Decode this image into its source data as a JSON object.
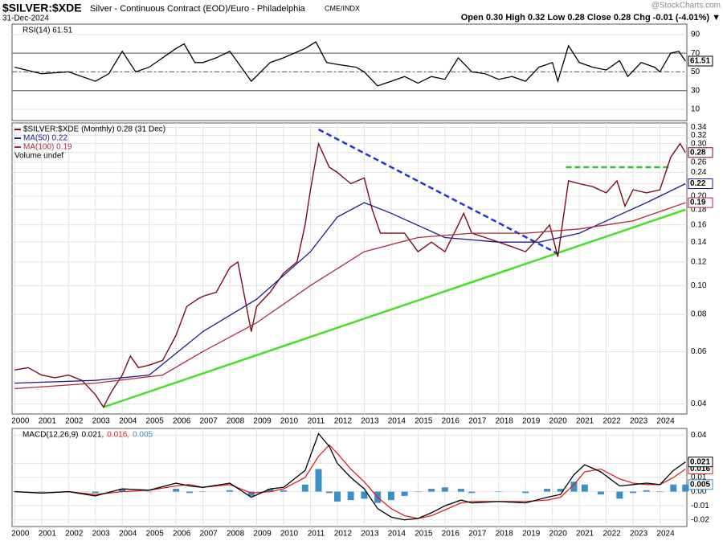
{
  "header": {
    "title": "$SILVER:$XDE",
    "subtitle": "Silver - Continuous Contract (EOD)/Euro - Philadelphia",
    "exchange": "CME/INDX",
    "date": "31-Dec-2024",
    "ohlc": "Open 0.30  High 0.32  Low 0.28  Close 0.28  Chg -0.01 (-4.01%) ▼",
    "credit": "@StockCharts.com"
  },
  "chart_data": [
    {
      "type": "line",
      "title": "RSI(14) 61.51",
      "xlim": [
        1999.9,
        2025
      ],
      "ylim": [
        -2,
        101
      ],
      "yticks": [
        10,
        30,
        50,
        70,
        90
      ],
      "levels": [
        70,
        50,
        30
      ],
      "grid": true,
      "series": [
        {
          "color": "#000000",
          "tag": "61.51",
          "x": [
            2000,
            2001,
            2002,
            2003,
            2003.5,
            2004,
            2004.5,
            2005,
            2006,
            2006.3,
            2006.7,
            2007,
            2007.5,
            2008,
            2008.8,
            2009.5,
            2010,
            2010.8,
            2011.2,
            2011.6,
            2012,
            2012.7,
            2013,
            2013.5,
            2014,
            2014.5,
            2015,
            2015.5,
            2016,
            2016.5,
            2017,
            2017.5,
            2018,
            2018.5,
            2019,
            2019.5,
            2020,
            2020.2,
            2020.6,
            2021,
            2021.5,
            2022,
            2022.5,
            2022.8,
            2023.3,
            2023.8,
            2024,
            2024.4,
            2024.7,
            2024.95
          ],
          "values": [
            55,
            48,
            50,
            40,
            48,
            72,
            50,
            55,
            75,
            80,
            60,
            60,
            65,
            72,
            40,
            60,
            65,
            75,
            82,
            60,
            58,
            55,
            50,
            35,
            40,
            45,
            38,
            45,
            42,
            65,
            50,
            48,
            42,
            45,
            40,
            55,
            60,
            40,
            78,
            60,
            55,
            52,
            62,
            45,
            60,
            55,
            50,
            70,
            72,
            61.51
          ]
        }
      ]
    },
    {
      "type": "line",
      "log_scale": true,
      "xlim": [
        1999.9,
        2025
      ],
      "ylim": [
        0.037,
        0.352
      ],
      "yticks": [
        0.04,
        0.06,
        0.08,
        {
          "value": 0.1,
          "label": "0.10"
        },
        0.12,
        0.14,
        0.16,
        0.18,
        {
          "value": 0.2,
          "label": "0.20"
        },
        0.22,
        0.24,
        0.26,
        0.28,
        {
          "value": 0.3,
          "label": "0.30"
        },
        0.32,
        0.34
      ],
      "xticks": [
        2000,
        2001,
        2002,
        2003,
        2004,
        2005,
        2006,
        2007,
        2008,
        2009,
        2010,
        2011,
        2012,
        2013,
        2014,
        2015,
        2016,
        2017,
        2018,
        2019,
        2020,
        2021,
        2022,
        2023,
        2024
      ],
      "grid": true,
      "series": [
        {
          "legend": "$SILVER:$XDE (Monthly) 0.28 (31 Dec)",
          "color": "#7a0a1e",
          "tag": "0.28",
          "x": [
            2000,
            2000.5,
            2001,
            2001.5,
            2002,
            2002.5,
            2003,
            2003.3,
            2003.6,
            2004,
            2004.3,
            2004.6,
            2005,
            2005.5,
            2006,
            2006.4,
            2006.8,
            2007,
            2007.5,
            2008,
            2008.3,
            2008.8,
            2009,
            2009.5,
            2010,
            2010.5,
            2010.8,
            2011,
            2011.3,
            2011.7,
            2012,
            2012.5,
            2013,
            2013.3,
            2013.6,
            2014,
            2014.5,
            2015,
            2015.5,
            2016,
            2016.5,
            2016.7,
            2017,
            2017.5,
            2018,
            2018.5,
            2019,
            2019.5,
            2019.9,
            2020.2,
            2020.6,
            2021,
            2021.5,
            2022,
            2022.4,
            2022.7,
            2023,
            2023.5,
            2024,
            2024.4,
            2024.75,
            2024.95
          ],
          "values": [
            0.052,
            0.053,
            0.05,
            0.049,
            0.05,
            0.048,
            0.043,
            0.039,
            0.044,
            0.05,
            0.058,
            0.053,
            0.054,
            0.056,
            0.068,
            0.085,
            0.09,
            0.092,
            0.095,
            0.115,
            0.12,
            0.07,
            0.085,
            0.095,
            0.11,
            0.12,
            0.16,
            0.21,
            0.3,
            0.25,
            0.24,
            0.22,
            0.23,
            0.18,
            0.15,
            0.15,
            0.15,
            0.13,
            0.14,
            0.13,
            0.16,
            0.175,
            0.15,
            0.145,
            0.14,
            0.135,
            0.13,
            0.145,
            0.16,
            0.125,
            0.225,
            0.22,
            0.215,
            0.205,
            0.225,
            0.185,
            0.21,
            0.205,
            0.21,
            0.27,
            0.3,
            0.28
          ]
        },
        {
          "legend": "MA(50) 0.22",
          "color": "#1a1a8c",
          "tag": "0.22",
          "x": [
            2000,
            2003,
            2005,
            2007,
            2009,
            2011,
            2012,
            2013,
            2014,
            2016,
            2018,
            2019.5,
            2021,
            2022,
            2023.5,
            2024.95
          ],
          "values": [
            0.047,
            0.048,
            0.05,
            0.07,
            0.09,
            0.13,
            0.17,
            0.19,
            0.175,
            0.145,
            0.14,
            0.14,
            0.15,
            0.165,
            0.19,
            0.22
          ]
        },
        {
          "legend": "MA(100) 0.19",
          "color": "#b0283c",
          "tag": "0.19",
          "x": [
            2000,
            2003,
            2005.5,
            2007,
            2009,
            2011,
            2013,
            2015,
            2017,
            2019,
            2021,
            2023,
            2024.95
          ],
          "values": [
            0.045,
            0.047,
            0.05,
            0.06,
            0.075,
            0.1,
            0.13,
            0.145,
            0.15,
            0.15,
            0.155,
            0.165,
            0.19
          ]
        }
      ],
      "notes": [
        "Volume undef"
      ],
      "lines": [
        {
          "color": "#44e024",
          "x": [
            2003.3,
            2024.95
          ],
          "values": [
            0.039,
            0.18
          ]
        },
        {
          "color": "#2233dd",
          "dashed": true,
          "x": [
            2011.3,
            2020.2
          ],
          "values": [
            0.335,
            0.128
          ]
        },
        {
          "color": "#22cc22",
          "dashed": true,
          "x": [
            2020.5,
            2024.4
          ],
          "values": [
            0.25,
            0.25
          ]
        }
      ]
    },
    {
      "type": "line",
      "title": "MACD(12,26,9)",
      "xlim": [
        1999.9,
        2025
      ],
      "ylim": [
        -0.0247,
        0.0447
      ],
      "yticks": [
        -0.02,
        -0.01,
        {
          "value": 0,
          "label": "0.00"
        },
        0.01,
        0.02,
        0.04
      ],
      "xticks": [
        2000,
        2001,
        2002,
        2003,
        2004,
        2005,
        2006,
        2007,
        2008,
        2009,
        2010,
        2011,
        2012,
        2013,
        2014,
        2015,
        2016,
        2017,
        2018,
        2019,
        2020,
        2021,
        2022,
        2023,
        2024
      ],
      "grid": true,
      "x": [
        2000,
        2001,
        2002,
        2003,
        2004,
        2005,
        2006,
        2006.5,
        2007,
        2008,
        2008.8,
        2009.5,
        2010,
        2010.8,
        2011.3,
        2011.7,
        2012,
        2012.5,
        2013,
        2013.5,
        2014,
        2014.5,
        2015,
        2015.5,
        2016,
        2016.6,
        2017,
        2018,
        2019,
        2019.8,
        2020.3,
        2020.8,
        2021.2,
        2021.8,
        2022.5,
        2023,
        2023.5,
        2024,
        2024.5,
        2024.95
      ],
      "series": [
        {
          "legend": "0.005",
          "color": "#3a8fc7",
          "style": "bar",
          "tag": "0.005",
          "values": [
            0,
            0,
            0,
            -0.001,
            0.002,
            0,
            0.002,
            -0.001,
            0,
            0.001,
            -0.003,
            0.002,
            0.001,
            0.005,
            0.016,
            -0.001,
            -0.007,
            -0.006,
            -0.005,
            -0.008,
            -0.006,
            -0.003,
            0,
            0.002,
            0.003,
            0.002,
            -0.001,
            0,
            -0.001,
            0.002,
            0.002,
            0.007,
            0.005,
            -0.002,
            -0.005,
            -0.001,
            0.001,
            0,
            0.005,
            0.005
          ]
        },
        {
          "legend": "0.016,",
          "color": "#e02020",
          "tag": "0.016",
          "values": [
            0,
            -0.001,
            0,
            -0.002,
            0,
            0.001,
            0.004,
            0.005,
            0.003,
            0.005,
            -0.001,
            0,
            0.002,
            0.01,
            0.025,
            0.033,
            0.027,
            0.016,
            0.007,
            -0.004,
            -0.012,
            -0.017,
            -0.019,
            -0.017,
            -0.013,
            -0.008,
            -0.007,
            -0.007,
            -0.007,
            -0.006,
            -0.004,
            0.005,
            0.014,
            0.016,
            0.009,
            0.006,
            0.005,
            0.005,
            0.01,
            0.016
          ]
        },
        {
          "legend": "0.021,",
          "color": "#000000",
          "tag": "0.021",
          "values": [
            0,
            -0.001,
            0,
            -0.003,
            0.002,
            0.001,
            0.006,
            0.004,
            0.003,
            0.006,
            -0.004,
            0.002,
            0.003,
            0.015,
            0.041,
            0.032,
            0.02,
            0.01,
            0.002,
            -0.012,
            -0.018,
            -0.02,
            -0.019,
            -0.015,
            -0.01,
            -0.006,
            -0.008,
            -0.007,
            -0.008,
            -0.004,
            -0.002,
            0.012,
            0.019,
            0.014,
            0.004,
            0.005,
            0.006,
            0.005,
            0.015,
            0.021
          ]
        }
      ]
    }
  ]
}
